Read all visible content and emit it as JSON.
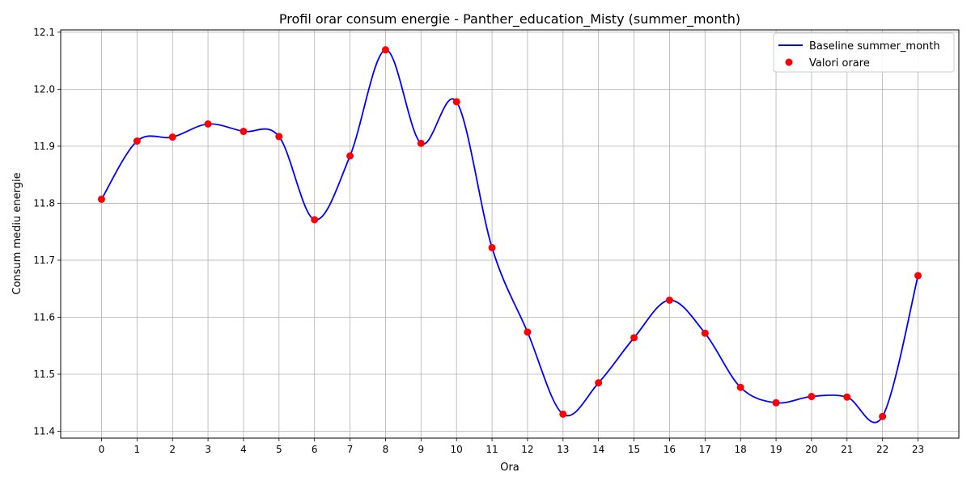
{
  "chart_data": {
    "type": "line",
    "title": "Profil orar consum energie - Panther_education_Misty (summer_month)",
    "xlabel": "Ora",
    "ylabel": "Consum mediu energie",
    "x": [
      0,
      1,
      2,
      3,
      4,
      5,
      6,
      7,
      8,
      9,
      10,
      11,
      12,
      13,
      14,
      15,
      16,
      17,
      18,
      19,
      20,
      21,
      22,
      23
    ],
    "x_tick_labels": [
      "0",
      "1",
      "2",
      "3",
      "4",
      "5",
      "6",
      "7",
      "8",
      "9",
      "10",
      "11",
      "12",
      "13",
      "14",
      "15",
      "16",
      "17",
      "18",
      "19",
      "20",
      "21",
      "22",
      "23"
    ],
    "y_ticks": [
      11.4,
      11.5,
      11.6,
      11.7,
      11.8,
      11.9,
      12.0,
      12.1
    ],
    "y_tick_labels": [
      "11.4",
      "11.5",
      "11.6",
      "11.7",
      "11.8",
      "11.9",
      "12.0",
      "12.1"
    ],
    "xlim": [
      -1.15,
      24.15
    ],
    "ylim": [
      11.388,
      12.104
    ],
    "grid": true,
    "legend_position": "top-right",
    "series": [
      {
        "name": "Baseline summer_month",
        "kind": "line",
        "color": "#0000ff",
        "smooth": true,
        "values": [
          11.807,
          11.909,
          11.916,
          11.939,
          11.926,
          11.917,
          11.771,
          11.883,
          12.069,
          11.905,
          11.978,
          11.722,
          11.574,
          11.43,
          11.485,
          11.564,
          11.63,
          11.572,
          11.477,
          11.45,
          11.461,
          11.46,
          11.426,
          11.673
        ]
      },
      {
        "name": "Valori orare",
        "kind": "scatter",
        "color": "#ff0000",
        "values": [
          11.807,
          11.909,
          11.916,
          11.939,
          11.926,
          11.917,
          11.771,
          11.883,
          12.069,
          11.905,
          11.978,
          11.722,
          11.574,
          11.43,
          11.485,
          11.564,
          11.63,
          11.572,
          11.477,
          11.45,
          11.461,
          11.46,
          11.426,
          11.673
        ]
      }
    ]
  }
}
